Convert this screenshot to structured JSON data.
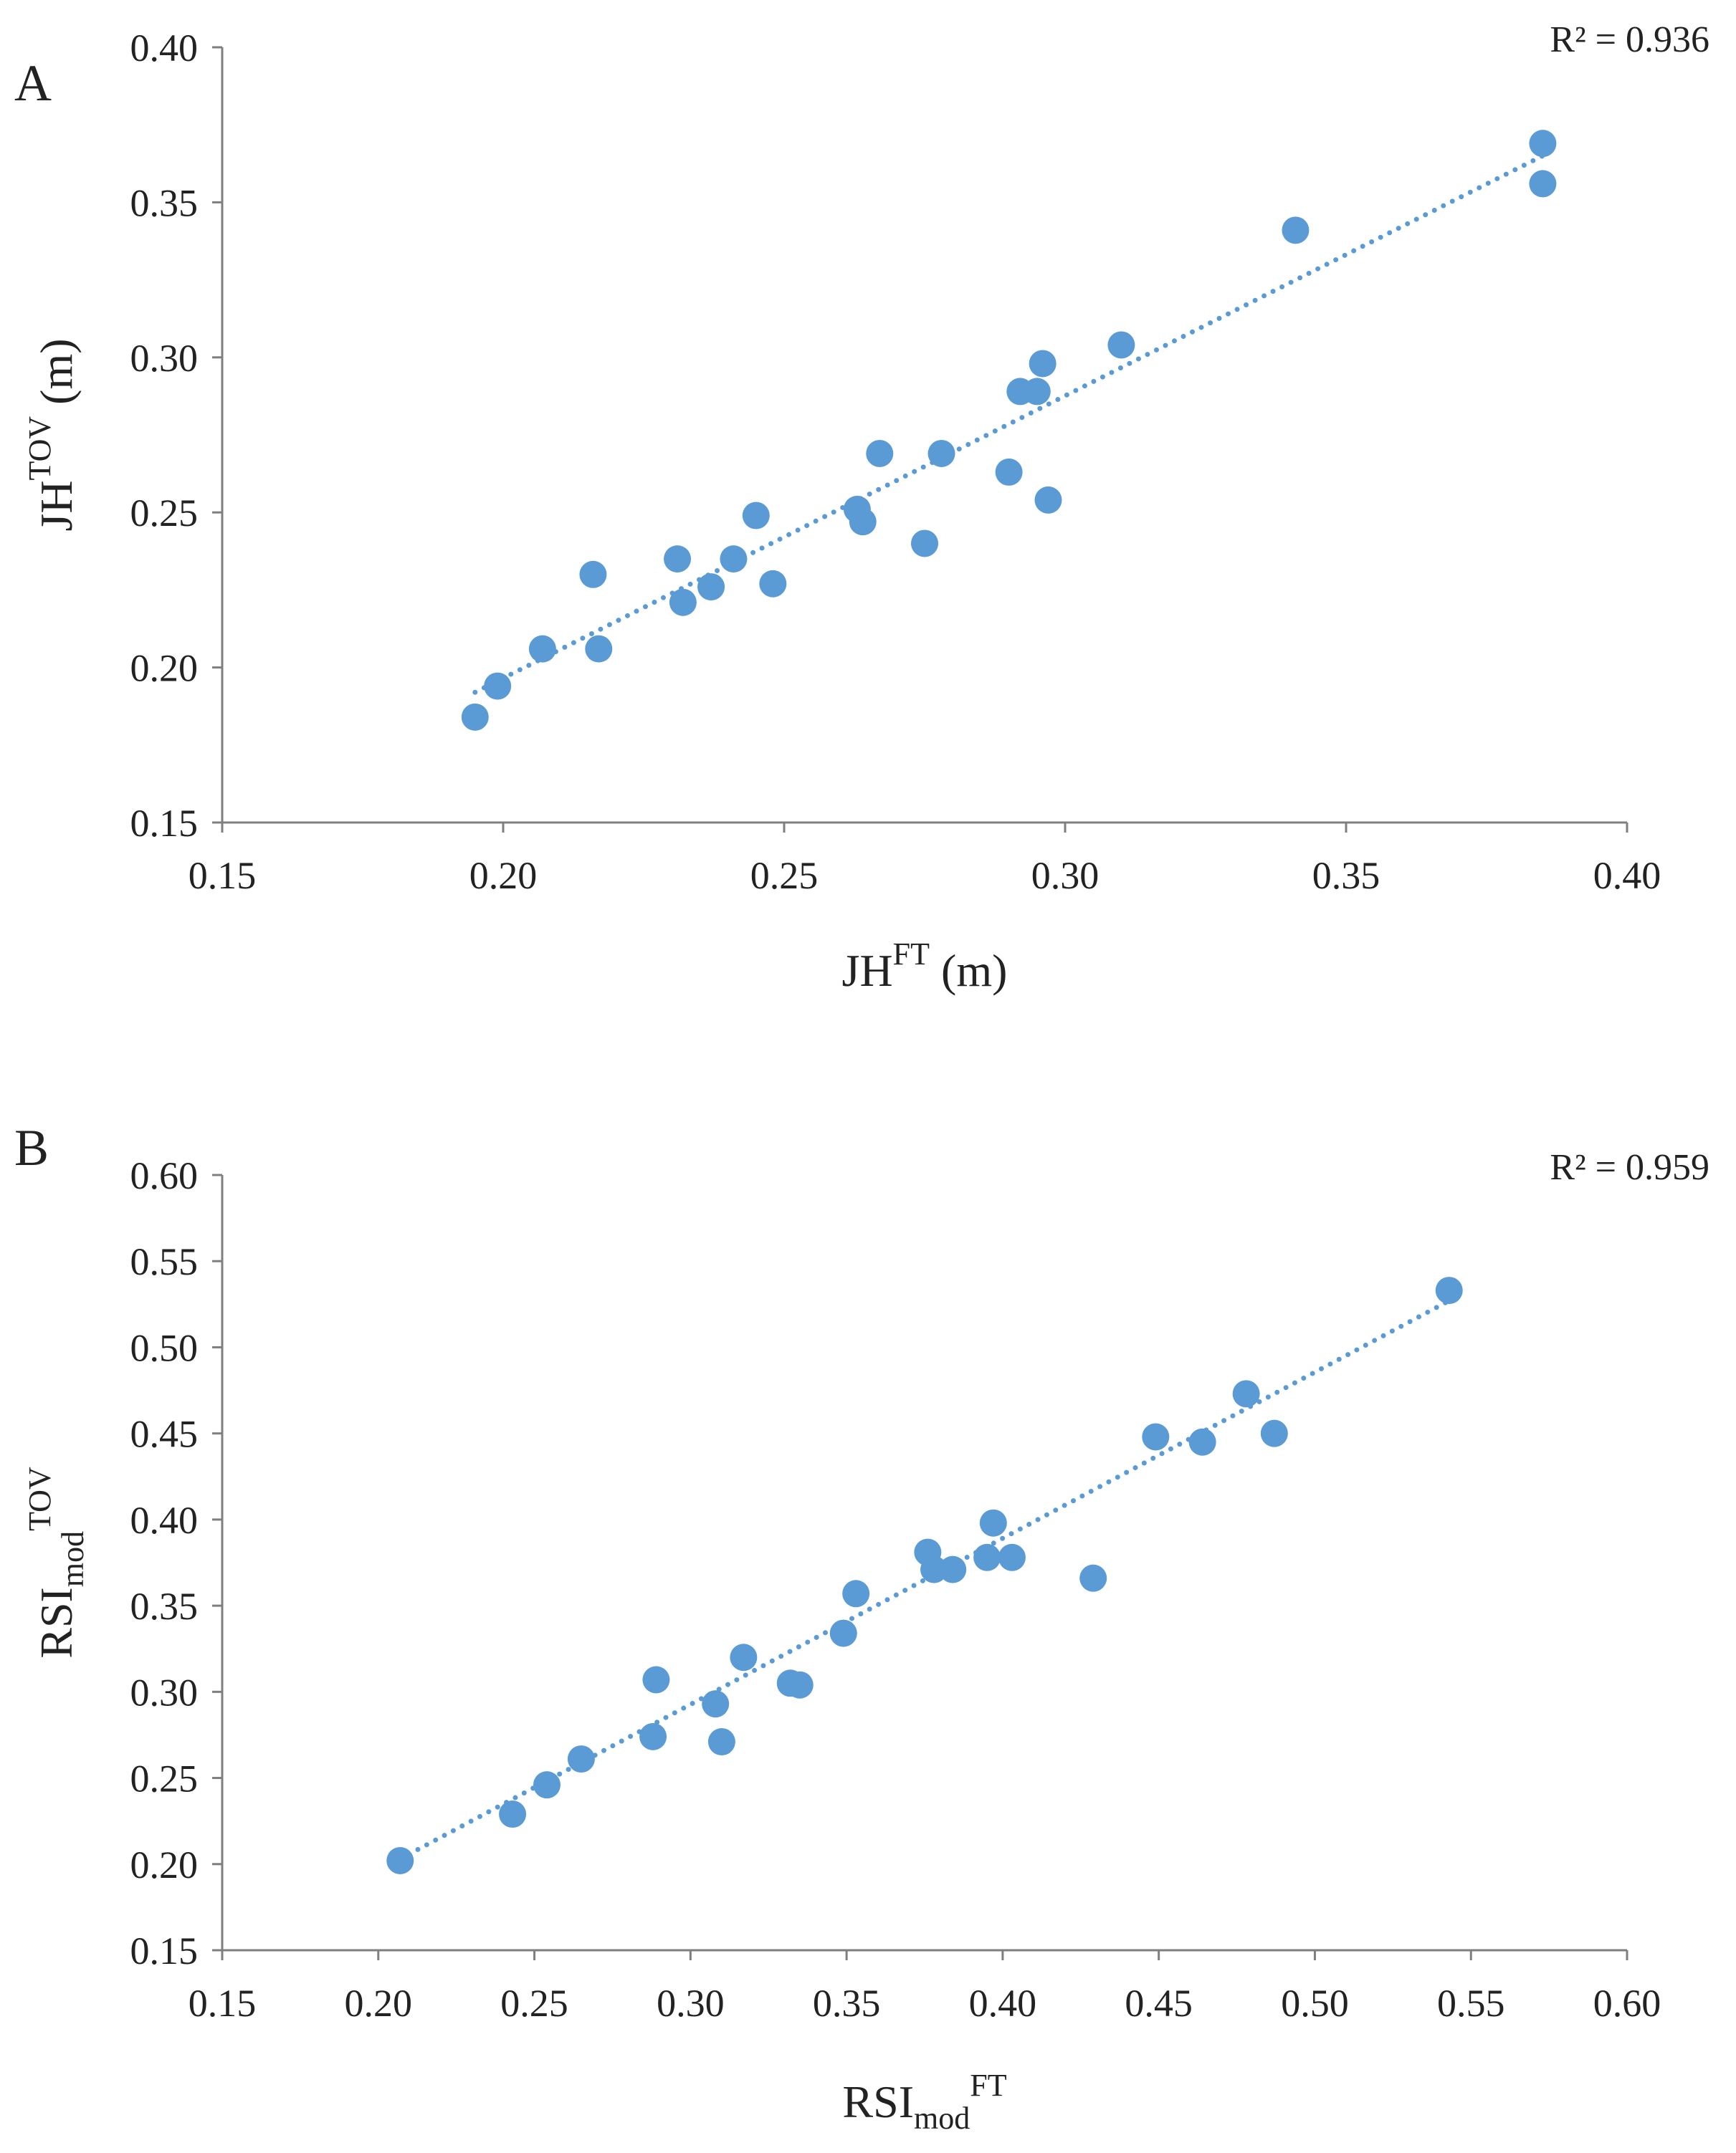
{
  "colors": {
    "marker": "#5b9bd5",
    "trend": "#5b9bd5",
    "axis": "#7f7f7f",
    "text": "#222222"
  },
  "chart_data": [
    {
      "type": "scatter",
      "panel_label": "A",
      "r2_label": "R² = 0.936",
      "xlabel": {
        "base": "JH",
        "sub": "",
        "sup": "FT",
        "tail": " (m)"
      },
      "ylabel": {
        "base": "JH",
        "sub": "",
        "sup": "TOV",
        "tail": " (m)"
      },
      "xlim": [
        0.15,
        0.4
      ],
      "ylim": [
        0.15,
        0.4
      ],
      "xticks": [
        "0.15",
        "0.20",
        "0.25",
        "0.30",
        "0.35",
        "0.40"
      ],
      "yticks": [
        "0.15",
        "0.20",
        "0.25",
        "0.30",
        "0.35",
        "0.40"
      ],
      "trendline": {
        "x": [
          0.195,
          0.385
        ],
        "y": [
          0.192,
          0.365
        ],
        "style": "dotted"
      },
      "points": [
        [
          0.195,
          0.184
        ],
        [
          0.199,
          0.194
        ],
        [
          0.207,
          0.206
        ],
        [
          0.216,
          0.23
        ],
        [
          0.217,
          0.206
        ],
        [
          0.231,
          0.235
        ],
        [
          0.232,
          0.221
        ],
        [
          0.237,
          0.226
        ],
        [
          0.241,
          0.235
        ],
        [
          0.245,
          0.249
        ],
        [
          0.248,
          0.227
        ],
        [
          0.263,
          0.251
        ],
        [
          0.264,
          0.247
        ],
        [
          0.267,
          0.269
        ],
        [
          0.275,
          0.24
        ],
        [
          0.278,
          0.269
        ],
        [
          0.29,
          0.263
        ],
        [
          0.292,
          0.289
        ],
        [
          0.295,
          0.289
        ],
        [
          0.296,
          0.298
        ],
        [
          0.297,
          0.254
        ],
        [
          0.31,
          0.304
        ],
        [
          0.341,
          0.341
        ],
        [
          0.385,
          0.369
        ],
        [
          0.385,
          0.356
        ]
      ]
    },
    {
      "type": "scatter",
      "panel_label": "B",
      "r2_label": "R² = 0.959",
      "xlabel": {
        "base": "RSI",
        "sub": "mod",
        "sup": "FT",
        "tail": ""
      },
      "ylabel": {
        "base": "RSI",
        "sub": "mod",
        "sup": "TOV",
        "tail": ""
      },
      "xlim": [
        0.15,
        0.6
      ],
      "ylim": [
        0.15,
        0.6
      ],
      "xticks": [
        "0.15",
        "0.20",
        "0.25",
        "0.30",
        "0.35",
        "0.40",
        "0.45",
        "0.50",
        "0.55",
        "0.60"
      ],
      "yticks": [
        "0.15",
        "0.20",
        "0.25",
        "0.30",
        "0.35",
        "0.40",
        "0.45",
        "0.50",
        "0.55",
        "0.60"
      ],
      "trendline": {
        "x": [
          0.207,
          0.543
        ],
        "y": [
          0.203,
          0.527
        ],
        "style": "dotted"
      },
      "points": [
        [
          0.207,
          0.202
        ],
        [
          0.243,
          0.229
        ],
        [
          0.254,
          0.246
        ],
        [
          0.265,
          0.261
        ],
        [
          0.288,
          0.274
        ],
        [
          0.289,
          0.307
        ],
        [
          0.308,
          0.293
        ],
        [
          0.31,
          0.271
        ],
        [
          0.317,
          0.32
        ],
        [
          0.332,
          0.305
        ],
        [
          0.335,
          0.304
        ],
        [
          0.349,
          0.334
        ],
        [
          0.353,
          0.357
        ],
        [
          0.376,
          0.381
        ],
        [
          0.378,
          0.371
        ],
        [
          0.384,
          0.371
        ],
        [
          0.395,
          0.378
        ],
        [
          0.397,
          0.398
        ],
        [
          0.403,
          0.378
        ],
        [
          0.429,
          0.366
        ],
        [
          0.449,
          0.448
        ],
        [
          0.464,
          0.445
        ],
        [
          0.478,
          0.473
        ],
        [
          0.487,
          0.45
        ],
        [
          0.543,
          0.533
        ]
      ]
    }
  ]
}
